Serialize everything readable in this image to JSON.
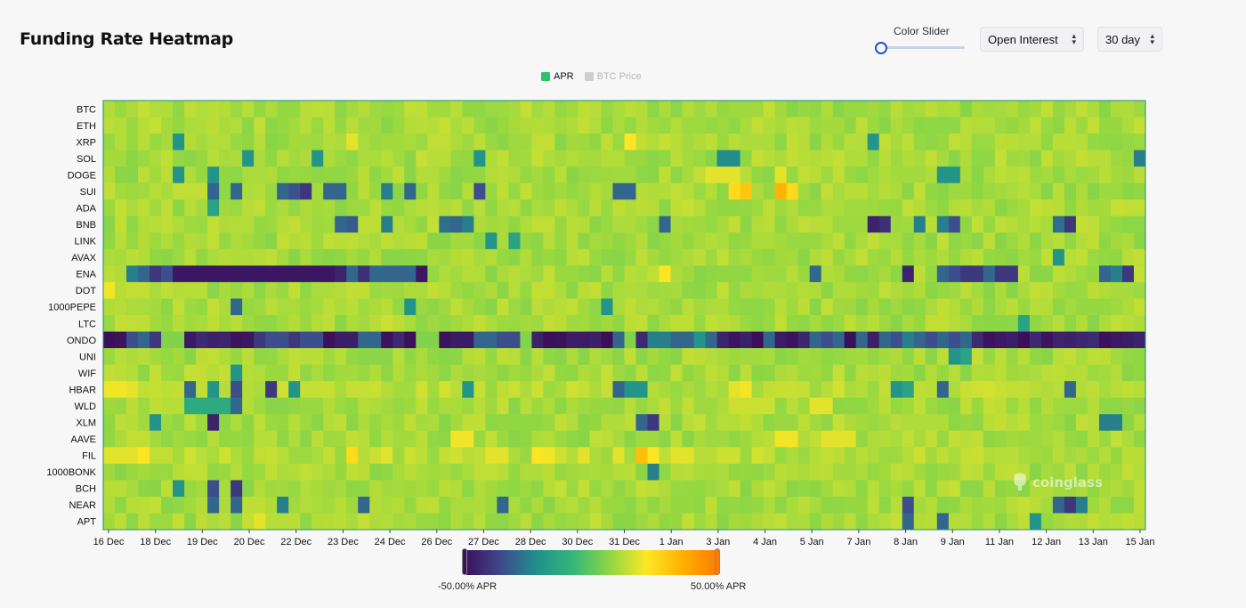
{
  "header": {
    "title": "Funding Rate Heatmap",
    "slider_label": "Color Slider",
    "metric_select": "Open Interest",
    "period_select": "30 day"
  },
  "legend": [
    {
      "label": "APR",
      "color": "#2bc46e",
      "active": true
    },
    {
      "label": "BTC Price",
      "color": "#c8c8c8",
      "active": false
    }
  ],
  "colorbar": {
    "min_label": "-50.00% APR",
    "max_label": "50.00% APR",
    "colors": [
      "#3b0f5c",
      "#3e4a8c",
      "#21908c",
      "#35b779",
      "#90d743",
      "#fde725",
      "#ffb000",
      "#ff7a00"
    ]
  },
  "watermark": "coinglass",
  "chart_data": {
    "type": "heatmap",
    "title": "Funding Rate Heatmap",
    "value_unit": "APR %",
    "value_range": [
      -50,
      50
    ],
    "x_tick_labels": [
      "16 Dec",
      "18 Dec",
      "19 Dec",
      "20 Dec",
      "22 Dec",
      "23 Dec",
      "24 Dec",
      "26 Dec",
      "27 Dec",
      "28 Dec",
      "30 Dec",
      "31 Dec",
      "1 Jan",
      "3 Jan",
      "4 Jan",
      "5 Jan",
      "7 Jan",
      "8 Jan",
      "9 Jan",
      "11 Jan",
      "12 Jan",
      "13 Jan",
      "15 Jan"
    ],
    "n_columns": 90,
    "rows": [
      {
        "symbol": "BTC",
        "base": 10,
        "spots": []
      },
      {
        "symbol": "ETH",
        "base": 10,
        "spots": []
      },
      {
        "symbol": "XRP",
        "base": 10,
        "spots": [
          [
            6,
            -20
          ],
          [
            66,
            -20
          ],
          [
            21,
            18
          ],
          [
            45,
            22
          ]
        ]
      },
      {
        "symbol": "SOL",
        "base": 10,
        "spots": [
          [
            12,
            -20
          ],
          [
            18,
            -20
          ],
          [
            32,
            -20
          ],
          [
            53,
            -22
          ],
          [
            54,
            -22
          ],
          [
            89,
            -25
          ]
        ]
      },
      {
        "symbol": "DOGE",
        "base": 10,
        "spots": [
          [
            6,
            -20
          ],
          [
            9,
            -20
          ],
          [
            72,
            -20
          ],
          [
            73,
            -20
          ],
          [
            52,
            18
          ],
          [
            53,
            18
          ],
          [
            54,
            18
          ],
          [
            58,
            18
          ]
        ]
      },
      {
        "symbol": "SUI",
        "base": 10,
        "spots": [
          [
            9,
            -30
          ],
          [
            11,
            -30
          ],
          [
            15,
            -30
          ],
          [
            16,
            -34
          ],
          [
            17,
            -40
          ],
          [
            19,
            -30
          ],
          [
            20,
            -30
          ],
          [
            24,
            -25
          ],
          [
            26,
            -30
          ],
          [
            32,
            -35
          ],
          [
            44,
            -30
          ],
          [
            45,
            -30
          ],
          [
            54,
            25
          ],
          [
            55,
            30
          ],
          [
            58,
            35
          ],
          [
            59,
            25
          ]
        ]
      },
      {
        "symbol": "ADA",
        "base": 10,
        "spots": [
          [
            9,
            -15
          ]
        ]
      },
      {
        "symbol": "BNB",
        "base": 10,
        "spots": [
          [
            20,
            -30
          ],
          [
            21,
            -32
          ],
          [
            24,
            -25
          ],
          [
            29,
            -28
          ],
          [
            30,
            -30
          ],
          [
            31,
            -25
          ],
          [
            48,
            -30
          ],
          [
            66,
            -45
          ],
          [
            67,
            -42
          ],
          [
            70,
            -25
          ],
          [
            72,
            -25
          ],
          [
            73,
            -35
          ],
          [
            82,
            -28
          ],
          [
            83,
            -40
          ]
        ]
      },
      {
        "symbol": "LINK",
        "base": 10,
        "spots": [
          [
            33,
            -20
          ],
          [
            35,
            -15
          ]
        ]
      },
      {
        "symbol": "AVAX",
        "base": 10,
        "spots": [
          [
            82,
            -20
          ]
        ]
      },
      {
        "symbol": "ENA",
        "base": 10,
        "spots": [
          [
            2,
            -25
          ],
          [
            3,
            -30
          ],
          [
            4,
            -40
          ],
          [
            5,
            -35
          ],
          [
            6,
            -48
          ],
          [
            7,
            -48
          ],
          [
            8,
            -48
          ],
          [
            9,
            -48
          ],
          [
            10,
            -48
          ],
          [
            11,
            -48
          ],
          [
            12,
            -48
          ],
          [
            13,
            -48
          ],
          [
            14,
            -48
          ],
          [
            15,
            -48
          ],
          [
            16,
            -48
          ],
          [
            17,
            -48
          ],
          [
            18,
            -48
          ],
          [
            19,
            -48
          ],
          [
            20,
            -45
          ],
          [
            21,
            -30
          ],
          [
            22,
            -42
          ],
          [
            23,
            -30
          ],
          [
            24,
            -30
          ],
          [
            25,
            -30
          ],
          [
            26,
            -30
          ],
          [
            27,
            -48
          ],
          [
            48,
            22
          ],
          [
            61,
            -30
          ],
          [
            69,
            -45
          ],
          [
            72,
            -30
          ],
          [
            73,
            -35
          ],
          [
            74,
            -40
          ],
          [
            75,
            -40
          ],
          [
            76,
            -30
          ],
          [
            77,
            -40
          ],
          [
            78,
            -40
          ],
          [
            86,
            -30
          ],
          [
            87,
            -25
          ],
          [
            88,
            -40
          ]
        ]
      },
      {
        "symbol": "DOT",
        "base": 10,
        "spots": [
          [
            0,
            20
          ]
        ]
      },
      {
        "symbol": "1000PEPE",
        "base": 10,
        "spots": [
          [
            11,
            -30
          ],
          [
            26,
            -20
          ],
          [
            43,
            -20
          ]
        ]
      },
      {
        "symbol": "LTC",
        "base": 10,
        "spots": [
          [
            24,
            15
          ],
          [
            79,
            -15
          ]
        ]
      },
      {
        "symbol": "ONDO",
        "base": -47,
        "spots": [
          [
            2,
            -35
          ],
          [
            3,
            -30
          ],
          [
            4,
            -40
          ],
          [
            5,
            5
          ],
          [
            6,
            5
          ],
          [
            13,
            -40
          ],
          [
            14,
            -35
          ],
          [
            15,
            -35
          ],
          [
            16,
            -40
          ],
          [
            17,
            -35
          ],
          [
            18,
            -35
          ],
          [
            22,
            -30
          ],
          [
            23,
            -30
          ],
          [
            27,
            5
          ],
          [
            28,
            5
          ],
          [
            32,
            -30
          ],
          [
            33,
            -30
          ],
          [
            34,
            -35
          ],
          [
            35,
            -35
          ],
          [
            36,
            5
          ],
          [
            44,
            -30
          ],
          [
            45,
            5
          ],
          [
            47,
            -25
          ],
          [
            48,
            -25
          ],
          [
            49,
            -30
          ],
          [
            50,
            -30
          ],
          [
            51,
            -20
          ],
          [
            52,
            -30
          ],
          [
            57,
            -30
          ],
          [
            61,
            -30
          ],
          [
            62,
            -35
          ],
          [
            63,
            -30
          ],
          [
            65,
            -30
          ],
          [
            67,
            -30
          ],
          [
            68,
            -35
          ],
          [
            69,
            -25
          ],
          [
            70,
            -30
          ],
          [
            71,
            -35
          ],
          [
            72,
            -30
          ],
          [
            73,
            -35
          ],
          [
            74,
            -30
          ]
        ]
      },
      {
        "symbol": "UNI",
        "base": 10,
        "spots": [
          [
            73,
            -20
          ],
          [
            74,
            -15
          ]
        ]
      },
      {
        "symbol": "WIF",
        "base": 10,
        "spots": [
          [
            11,
            -20
          ]
        ]
      },
      {
        "symbol": "HBAR",
        "base": 12,
        "spots": [
          [
            0,
            20
          ],
          [
            1,
            20
          ],
          [
            2,
            18
          ],
          [
            7,
            -30
          ],
          [
            9,
            -20
          ],
          [
            11,
            -35
          ],
          [
            14,
            -40
          ],
          [
            16,
            -20
          ],
          [
            31,
            -20
          ],
          [
            44,
            -30
          ],
          [
            45,
            -20
          ],
          [
            46,
            -20
          ],
          [
            54,
            18
          ],
          [
            55,
            20
          ],
          [
            68,
            -20
          ],
          [
            69,
            -15
          ],
          [
            72,
            -30
          ],
          [
            83,
            -30
          ]
        ]
      },
      {
        "symbol": "WLD",
        "base": 10,
        "spots": [
          [
            7,
            -12
          ],
          [
            8,
            -12
          ],
          [
            9,
            -12
          ],
          [
            10,
            -12
          ],
          [
            11,
            -30
          ],
          [
            54,
            15
          ],
          [
            55,
            15
          ],
          [
            56,
            15
          ],
          [
            57,
            15
          ],
          [
            61,
            18
          ],
          [
            62,
            18
          ]
        ]
      },
      {
        "symbol": "XLM",
        "base": 10,
        "spots": [
          [
            4,
            -20
          ],
          [
            9,
            -45
          ],
          [
            46,
            -30
          ],
          [
            47,
            -40
          ],
          [
            86,
            -25
          ],
          [
            87,
            -25
          ]
        ]
      },
      {
        "symbol": "AAVE",
        "base": 10,
        "spots": [
          [
            30,
            20
          ],
          [
            31,
            20
          ],
          [
            58,
            20
          ],
          [
            59,
            20
          ],
          [
            62,
            18
          ],
          [
            63,
            18
          ],
          [
            64,
            18
          ]
        ]
      },
      {
        "symbol": "FIL",
        "base": 12,
        "spots": [
          [
            0,
            18
          ],
          [
            1,
            18
          ],
          [
            2,
            18
          ],
          [
            3,
            22
          ],
          [
            21,
            25
          ],
          [
            24,
            18
          ],
          [
            33,
            18
          ],
          [
            34,
            18
          ],
          [
            37,
            22
          ],
          [
            38,
            20
          ],
          [
            41,
            18
          ],
          [
            44,
            18
          ],
          [
            46,
            32
          ],
          [
            47,
            22
          ],
          [
            49,
            18
          ],
          [
            50,
            18
          ]
        ]
      },
      {
        "symbol": "1000BONK",
        "base": 10,
        "spots": [
          [
            47,
            -25
          ]
        ]
      },
      {
        "symbol": "BCH",
        "base": 10,
        "spots": [
          [
            9,
            -35
          ],
          [
            11,
            -40
          ],
          [
            6,
            -20
          ]
        ]
      },
      {
        "symbol": "NEAR",
        "base": 10,
        "spots": [
          [
            9,
            -30
          ],
          [
            11,
            -30
          ],
          [
            15,
            -25
          ],
          [
            22,
            -30
          ],
          [
            34,
            -30
          ],
          [
            69,
            -35
          ],
          [
            82,
            -30
          ],
          [
            83,
            -40
          ],
          [
            84,
            -25
          ]
        ]
      },
      {
        "symbol": "APT",
        "base": 10,
        "spots": [
          [
            13,
            18
          ],
          [
            69,
            -30
          ],
          [
            72,
            -30
          ],
          [
            80,
            -20
          ]
        ]
      }
    ]
  }
}
